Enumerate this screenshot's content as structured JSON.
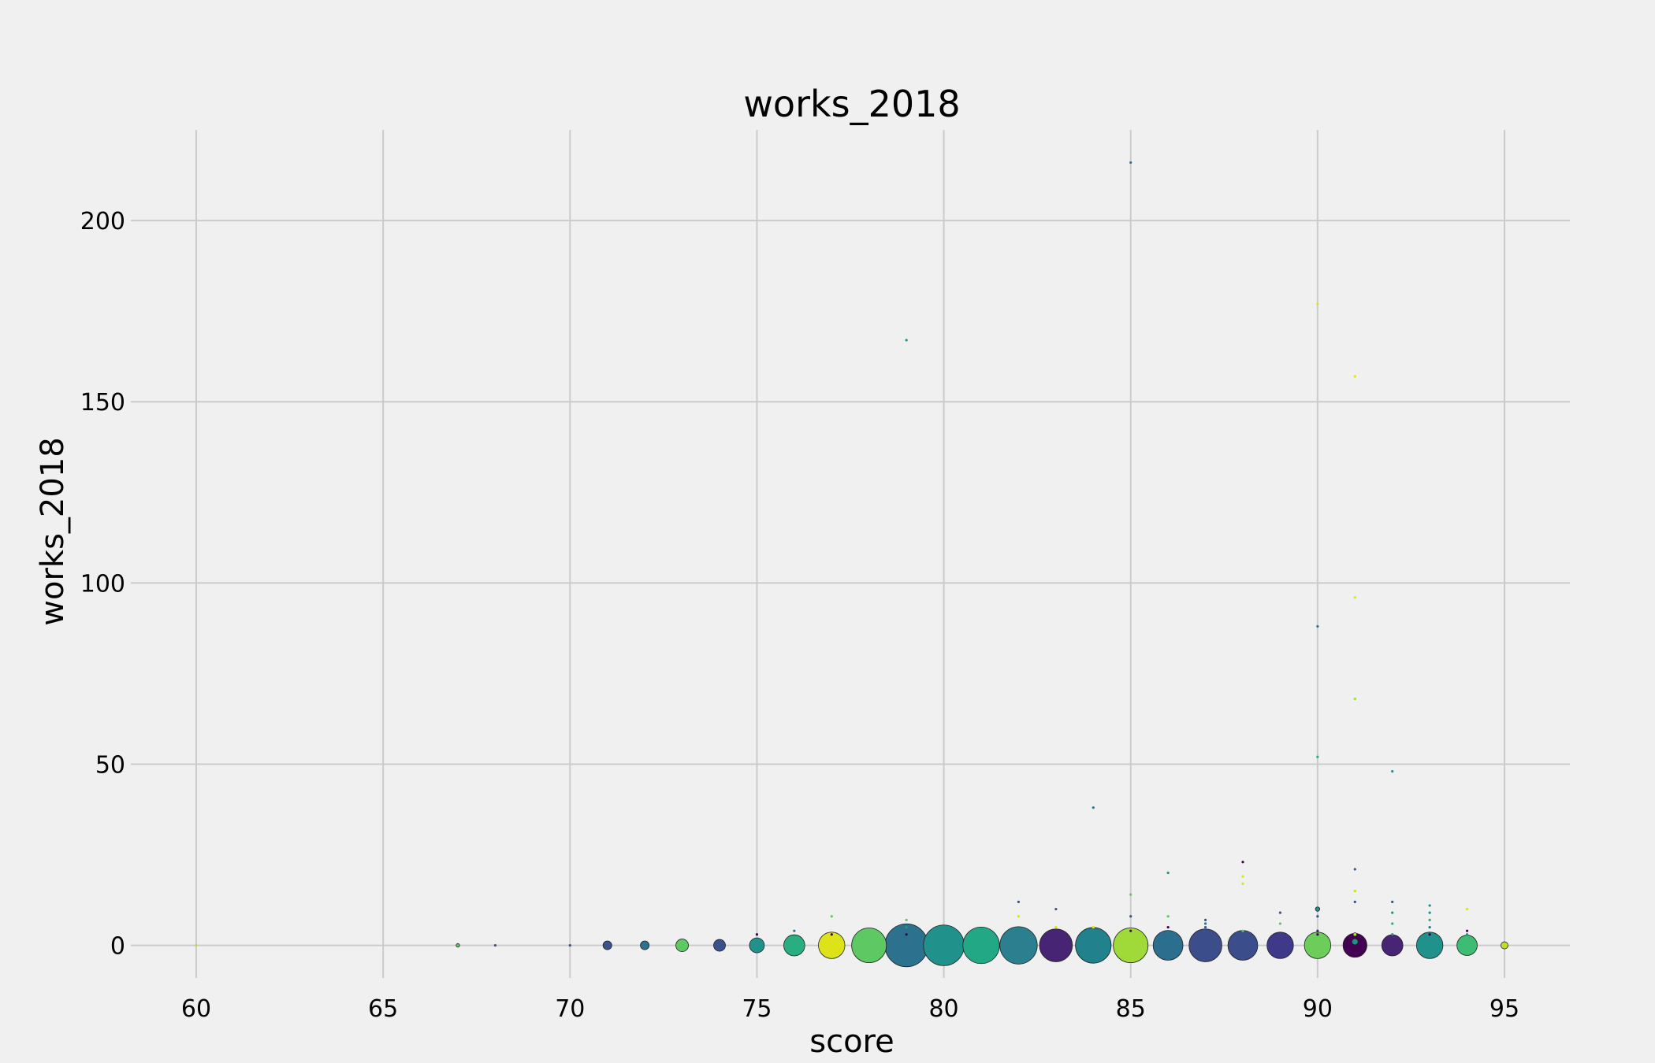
{
  "chart_data": {
    "type": "scatter",
    "title": "works_2018",
    "xlabel": "score",
    "ylabel": "works_2018",
    "xlim": [
      58.25,
      96.75
    ],
    "ylim": [
      -9,
      225
    ],
    "xticks": [
      60,
      65,
      70,
      75,
      80,
      85,
      90,
      95
    ],
    "yticks": [
      0,
      50,
      100,
      150,
      200
    ],
    "grid": true,
    "legend": "none",
    "note": "marker size = number of records at that point",
    "points": [
      {
        "x": 60,
        "y": 0,
        "n": 1,
        "c": "#bddf26"
      },
      {
        "x": 67,
        "y": 0,
        "n": 2,
        "c": "#5ec962"
      },
      {
        "x": 68,
        "y": 0,
        "n": 1,
        "c": "#3b528b"
      },
      {
        "x": 70,
        "y": 0,
        "n": 1,
        "c": "#3b528b"
      },
      {
        "x": 71,
        "y": 0,
        "n": 12,
        "c": "#3b528b"
      },
      {
        "x": 72,
        "y": 0,
        "n": 12,
        "c": "#2c728e"
      },
      {
        "x": 73,
        "y": 0,
        "n": 25,
        "c": "#5ec962"
      },
      {
        "x": 74,
        "y": 0,
        "n": 22,
        "c": "#3b528b"
      },
      {
        "x": 75,
        "y": 0,
        "n": 35,
        "c": "#21918c"
      },
      {
        "x": 75,
        "y": 3,
        "n": 1,
        "c": "#440154"
      },
      {
        "x": 76,
        "y": 0,
        "n": 70,
        "c": "#28ae80"
      },
      {
        "x": 76,
        "y": 4,
        "n": 1,
        "c": "#2c728e"
      },
      {
        "x": 77,
        "y": 0,
        "n": 110,
        "c": "#dde318"
      },
      {
        "x": 77,
        "y": 3,
        "n": 1,
        "c": "#440154"
      },
      {
        "x": 77,
        "y": 8,
        "n": 1,
        "c": "#5ec962"
      },
      {
        "x": 78,
        "y": 0,
        "n": 190,
        "c": "#5ec962"
      },
      {
        "x": 79,
        "y": 0,
        "n": 290,
        "c": "#2c728e"
      },
      {
        "x": 79,
        "y": 3,
        "n": 1,
        "c": "#440154"
      },
      {
        "x": 79,
        "y": 5,
        "n": 1,
        "c": "#21918c"
      },
      {
        "x": 79,
        "y": 7,
        "n": 1,
        "c": "#5ec962"
      },
      {
        "x": 79,
        "y": 167,
        "n": 1,
        "c": "#21918c"
      },
      {
        "x": 80,
        "y": 0,
        "n": 260,
        "c": "#21918c"
      },
      {
        "x": 81,
        "y": 0,
        "n": 210,
        "c": "#22a884"
      },
      {
        "x": 82,
        "y": 0,
        "n": 220,
        "c": "#2c7f8e"
      },
      {
        "x": 82,
        "y": 8,
        "n": 1,
        "c": "#dde318"
      },
      {
        "x": 82,
        "y": 12,
        "n": 1,
        "c": "#3b528b"
      },
      {
        "x": 83,
        "y": 0,
        "n": 170,
        "c": "#482475"
      },
      {
        "x": 83,
        "y": 5,
        "n": 1,
        "c": "#dde318"
      },
      {
        "x": 83,
        "y": 10,
        "n": 1,
        "c": "#3b528b"
      },
      {
        "x": 84,
        "y": 0,
        "n": 200,
        "c": "#21818c"
      },
      {
        "x": 84,
        "y": 5,
        "n": 1,
        "c": "#dde318"
      },
      {
        "x": 84,
        "y": 38,
        "n": 1,
        "c": "#2c728e"
      },
      {
        "x": 85,
        "y": 0,
        "n": 190,
        "c": "#a0da39"
      },
      {
        "x": 85,
        "y": 4,
        "n": 1,
        "c": "#440154"
      },
      {
        "x": 85,
        "y": 8,
        "n": 1,
        "c": "#3b528b"
      },
      {
        "x": 85,
        "y": 14,
        "n": 1,
        "c": "#5ec962"
      },
      {
        "x": 85,
        "y": 216,
        "n": 1,
        "c": "#2c728e"
      },
      {
        "x": 86,
        "y": 0,
        "n": 140,
        "c": "#2c6e8e"
      },
      {
        "x": 86,
        "y": 5,
        "n": 1,
        "c": "#440154"
      },
      {
        "x": 86,
        "y": 8,
        "n": 1,
        "c": "#5ec962"
      },
      {
        "x": 86,
        "y": 20,
        "n": 1,
        "c": "#21918c"
      },
      {
        "x": 87,
        "y": 0,
        "n": 170,
        "c": "#3b4d8b"
      },
      {
        "x": 87,
        "y": 5,
        "n": 1,
        "c": "#3b528b"
      },
      {
        "x": 87,
        "y": 6,
        "n": 1,
        "c": "#2c728e"
      },
      {
        "x": 87,
        "y": 7,
        "n": 1,
        "c": "#3b528b"
      },
      {
        "x": 88,
        "y": 0,
        "n": 140,
        "c": "#3b4d8b"
      },
      {
        "x": 88,
        "y": 4,
        "n": 1,
        "c": "#5ec962"
      },
      {
        "x": 88,
        "y": 17,
        "n": 1,
        "c": "#dde318"
      },
      {
        "x": 88,
        "y": 19,
        "n": 1,
        "c": "#dde318"
      },
      {
        "x": 88,
        "y": 23,
        "n": 1,
        "c": "#440154"
      },
      {
        "x": 89,
        "y": 0,
        "n": 110,
        "c": "#3e3a89"
      },
      {
        "x": 89,
        "y": 6,
        "n": 1,
        "c": "#5ec962"
      },
      {
        "x": 89,
        "y": 9,
        "n": 1,
        "c": "#3b528b"
      },
      {
        "x": 90,
        "y": 0,
        "n": 110,
        "c": "#6ccd5a"
      },
      {
        "x": 90,
        "y": 3,
        "n": 1,
        "c": "#440154"
      },
      {
        "x": 90,
        "y": 4,
        "n": 1,
        "c": "#482475"
      },
      {
        "x": 90,
        "y": 8,
        "n": 1,
        "c": "#3b528b"
      },
      {
        "x": 90,
        "y": 10,
        "n": 3,
        "c": "#21918c"
      },
      {
        "x": 90,
        "y": 52,
        "n": 1,
        "c": "#28ae80"
      },
      {
        "x": 90,
        "y": 88,
        "n": 1,
        "c": "#2c728e"
      },
      {
        "x": 90,
        "y": 177,
        "n": 1,
        "c": "#dde318"
      },
      {
        "x": 91,
        "y": 0,
        "n": 90,
        "c": "#440154"
      },
      {
        "x": 91,
        "y": 1,
        "n": 6,
        "c": "#21918c"
      },
      {
        "x": 91,
        "y": 3,
        "n": 2,
        "c": "#bddf26"
      },
      {
        "x": 91,
        "y": 12,
        "n": 1,
        "c": "#3b528b"
      },
      {
        "x": 91,
        "y": 15,
        "n": 1,
        "c": "#bddf26"
      },
      {
        "x": 91,
        "y": 21,
        "n": 1,
        "c": "#3b528b"
      },
      {
        "x": 91,
        "y": 68,
        "n": 1,
        "c": "#a0da39"
      },
      {
        "x": 91,
        "y": 96,
        "n": 1,
        "c": "#dde318"
      },
      {
        "x": 91,
        "y": 157,
        "n": 1,
        "c": "#dde318"
      },
      {
        "x": 92,
        "y": 0,
        "n": 70,
        "c": "#482475"
      },
      {
        "x": 92,
        "y": 3,
        "n": 1,
        "c": "#21918c"
      },
      {
        "x": 92,
        "y": 6,
        "n": 1,
        "c": "#28ae80"
      },
      {
        "x": 92,
        "y": 9,
        "n": 1,
        "c": "#21918c"
      },
      {
        "x": 92,
        "y": 12,
        "n": 1,
        "c": "#3b528b"
      },
      {
        "x": 92,
        "y": 48,
        "n": 1,
        "c": "#21918c"
      },
      {
        "x": 93,
        "y": 0,
        "n": 110,
        "c": "#21918c"
      },
      {
        "x": 93,
        "y": 3,
        "n": 1,
        "c": "#440154"
      },
      {
        "x": 93,
        "y": 5,
        "n": 1,
        "c": "#2c728e"
      },
      {
        "x": 93,
        "y": 7,
        "n": 1,
        "c": "#28ae80"
      },
      {
        "x": 93,
        "y": 9,
        "n": 1,
        "c": "#21918c"
      },
      {
        "x": 93,
        "y": 11,
        "n": 1,
        "c": "#21918c"
      },
      {
        "x": 94,
        "y": 0,
        "n": 65,
        "c": "#3dbc74"
      },
      {
        "x": 94,
        "y": 3,
        "n": 1,
        "c": "#21918c"
      },
      {
        "x": 94,
        "y": 4,
        "n": 1,
        "c": "#440154"
      },
      {
        "x": 94,
        "y": 10,
        "n": 1,
        "c": "#dde318"
      },
      {
        "x": 95,
        "y": 0,
        "n": 8,
        "c": "#bddf26"
      }
    ]
  }
}
